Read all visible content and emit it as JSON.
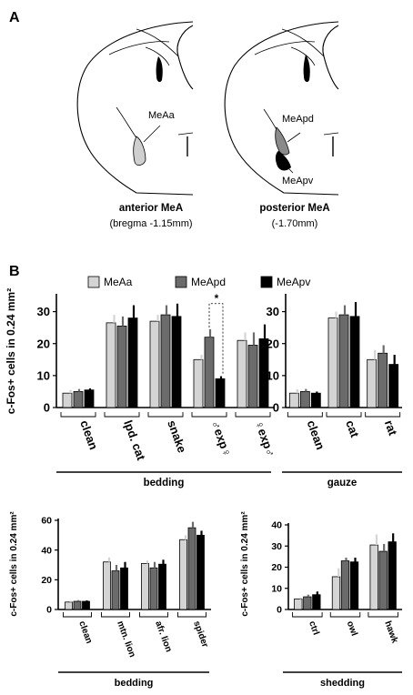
{
  "panel_a": {
    "label": "A",
    "left": {
      "region": "MeAa",
      "title": "anterior MeA",
      "subtitle": "(bregma -1.15mm)"
    },
    "right": {
      "region_top": "MeApd",
      "region_bottom": "MeApv",
      "title": "posterior MeA",
      "subtitle": "(-1.70mm)"
    }
  },
  "panel_b": {
    "label": "B"
  },
  "colors": {
    "MeAa": "#d4d4d4",
    "MeApd": "#6b6b6b",
    "MeApv": "#000000"
  },
  "chart_data": [
    {
      "type": "bar",
      "ylabel": "c-Fos+ cells in 0.24 mm²",
      "ylim": [
        0,
        35
      ],
      "yticks": [
        0,
        10,
        20,
        30
      ],
      "legend": [
        "MeAa",
        "MeApd",
        "MeApv"
      ],
      "categories": [
        "clean",
        "lpd. cat",
        "snake",
        "♂exp♀",
        "♀exp♂"
      ],
      "series": [
        {
          "name": "MeAa",
          "values": [
            4.5,
            26.5,
            27,
            15,
            21
          ],
          "errors": [
            1,
            2.5,
            2,
            1.5,
            2.5
          ]
        },
        {
          "name": "MeApd",
          "values": [
            5,
            25.5,
            29,
            22,
            19.5
          ],
          "errors": [
            0.8,
            3,
            3,
            2.5,
            4
          ]
        },
        {
          "name": "MeApv",
          "values": [
            5.5,
            28,
            28.5,
            9,
            21.5
          ],
          "errors": [
            0.5,
            4,
            4,
            0.8,
            4.5
          ]
        }
      ],
      "significance": "*",
      "group_label": "bedding"
    },
    {
      "type": "bar",
      "ylim": [
        0,
        35
      ],
      "yticks": [
        0,
        10,
        20,
        30
      ],
      "categories": [
        "clean",
        "cat",
        "rat"
      ],
      "series": [
        {
          "name": "MeAa",
          "values": [
            4.5,
            28,
            15
          ],
          "errors": [
            1.2,
            2,
            3
          ]
        },
        {
          "name": "MeApd",
          "values": [
            5,
            29,
            17
          ],
          "errors": [
            0.8,
            3,
            2.5
          ]
        },
        {
          "name": "MeApv",
          "values": [
            4.5,
            28.5,
            13.5
          ],
          "errors": [
            0.5,
            4.5,
            3
          ]
        }
      ],
      "group_label": "gauze"
    },
    {
      "type": "bar",
      "ylabel": "c-Fos+ cells in 0.24 mm²",
      "ylim": [
        0,
        60
      ],
      "yticks": [
        0,
        20,
        40,
        60
      ],
      "categories": [
        "clean",
        "mtn. lion",
        "afr. lion",
        "spider"
      ],
      "series": [
        {
          "name": "MeAa",
          "values": [
            5,
            32,
            31,
            47
          ],
          "errors": [
            0.8,
            3,
            2,
            3
          ]
        },
        {
          "name": "MeApd",
          "values": [
            5.5,
            26,
            28,
            55
          ],
          "errors": [
            0.8,
            4,
            4,
            4
          ]
        },
        {
          "name": "MeApv",
          "values": [
            5.5,
            28,
            30.5,
            50
          ],
          "errors": [
            0.6,
            4,
            3,
            3
          ]
        }
      ],
      "group_label": "bedding"
    },
    {
      "type": "bar",
      "ylabel": "c-Fos+ cells in 0.24 mm²",
      "ylim": [
        0,
        40
      ],
      "yticks": [
        0,
        10,
        20,
        30,
        40
      ],
      "categories": [
        "ctrl",
        "owl",
        "hawk"
      ],
      "series": [
        {
          "name": "MeAa",
          "values": [
            5,
            15.5,
            30.5
          ],
          "errors": [
            0.7,
            4,
            5
          ]
        },
        {
          "name": "MeApd",
          "values": [
            6,
            23,
            27.5
          ],
          "errors": [
            1,
            1.5,
            3.5
          ]
        },
        {
          "name": "MeApv",
          "values": [
            7,
            22.5,
            32
          ],
          "errors": [
            1.5,
            2,
            4
          ]
        }
      ],
      "group_label": "shedding"
    }
  ]
}
